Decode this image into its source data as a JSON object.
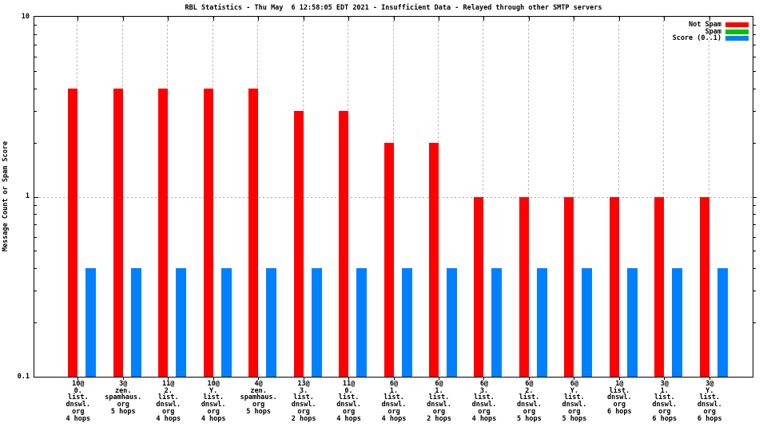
{
  "chart_data": {
    "type": "bar",
    "title": "RBL Statistics - Thu May  6 12:58:05 EDT 2021 - Insufficient Data - Relayed through other SMTP servers",
    "ylabel": "Message Count or Spam Score",
    "yscale": "log",
    "ylim": [
      0.1,
      10
    ],
    "yticks": [
      {
        "label": "0.1",
        "value": 0.1
      },
      {
        "label": "1",
        "value": 1
      },
      {
        "label": "10",
        "value": 10
      }
    ],
    "grid": true,
    "grid_color": "#a8a8a8",
    "legend_position": "top-right-inside",
    "legend": [
      {
        "label": "Not Spam",
        "color": "#ff0000"
      },
      {
        "label": "Spam",
        "color": "#00c000"
      },
      {
        "label": "Score (0..1)",
        "color": "#0080ff"
      }
    ],
    "categories": [
      [
        "10@",
        "0.",
        "list.",
        "dnswl.",
        "org",
        "4 hops"
      ],
      [
        "3@",
        "zen.",
        "spamhaus.",
        "org",
        "5 hops"
      ],
      [
        "11@",
        "2.",
        "list.",
        "dnswl.",
        "org",
        "4 hops"
      ],
      [
        "10@",
        "Y.",
        "list.",
        "dnswl.",
        "org",
        "4 hops"
      ],
      [
        "4@",
        "zen.",
        "spamhaus.",
        "org",
        "5 hops"
      ],
      [
        "13@",
        "3.",
        "list.",
        "dnswl.",
        "org",
        "2 hops"
      ],
      [
        "11@",
        "0.",
        "list.",
        "dnswl.",
        "org",
        "4 hops"
      ],
      [
        "6@",
        "1.",
        "list.",
        "dnswl.",
        "org",
        "4 hops"
      ],
      [
        "6@",
        "1.",
        "list.",
        "dnswl.",
        "org",
        "2 hops"
      ],
      [
        "6@",
        "3.",
        "list.",
        "dnswl.",
        "org",
        "4 hops"
      ],
      [
        "6@",
        "2.",
        "list.",
        "dnswl.",
        "org",
        "5 hops"
      ],
      [
        "6@",
        "Y.",
        "list.",
        "dnswl.",
        "org",
        "5 hops"
      ],
      [
        "1@",
        "list.",
        "dnswl.",
        "org",
        "6 hops"
      ],
      [
        "3@",
        "1.",
        "list.",
        "dnswl.",
        "org",
        "6 hops"
      ],
      [
        "3@",
        "Y.",
        "list.",
        "dnswl.",
        "org",
        "6 hops"
      ]
    ],
    "series": [
      {
        "name": "Not Spam",
        "color": "#ff0000",
        "values": [
          4,
          4,
          4,
          4,
          4,
          3,
          3,
          2,
          2,
          1,
          1,
          1,
          1,
          1,
          1
        ]
      },
      {
        "name": "Spam",
        "color": "#00c000",
        "values": [
          0,
          0,
          0,
          0,
          0,
          0,
          0,
          0,
          0,
          0,
          0,
          0,
          0,
          0,
          0
        ]
      },
      {
        "name": "Score (0..1)",
        "color": "#0080ff",
        "values": [
          0.4,
          0.4,
          0.4,
          0.4,
          0.4,
          0.4,
          0.4,
          0.4,
          0.4,
          0.4,
          0.4,
          0.4,
          0.4,
          0.4,
          0.4
        ]
      }
    ]
  }
}
